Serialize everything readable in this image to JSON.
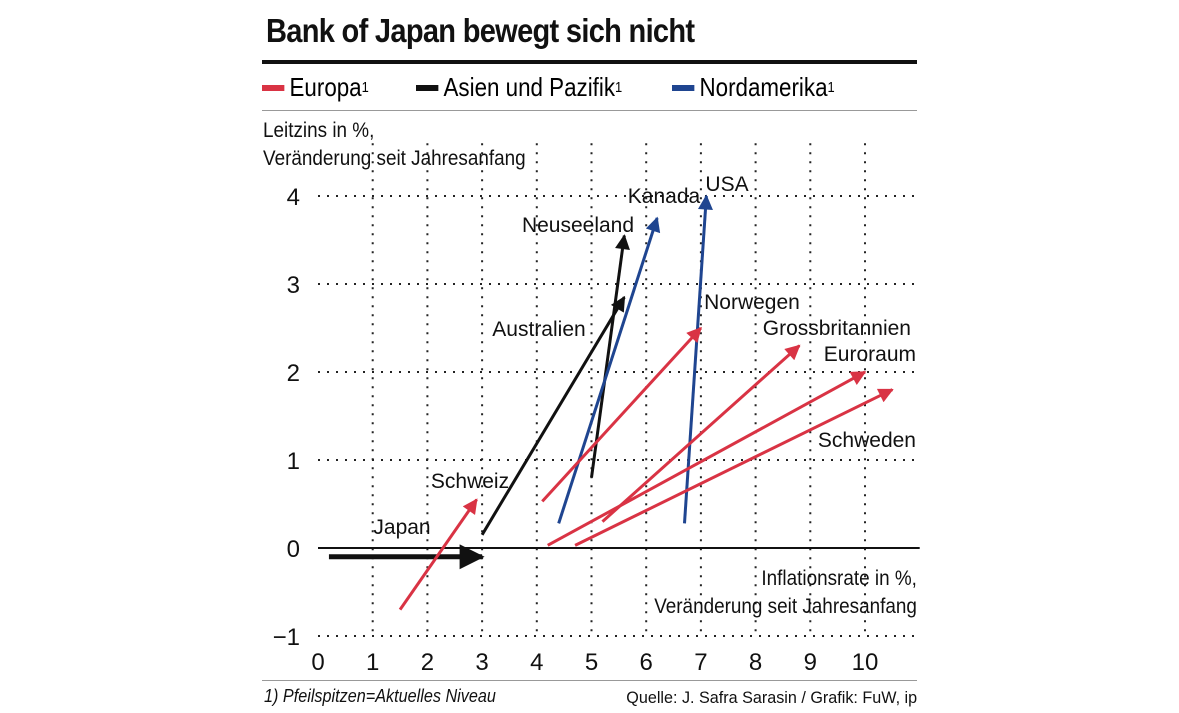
{
  "header": {
    "title": "Bank of Japan bewegt sich nicht"
  },
  "legend": [
    {
      "label": "Europa",
      "sup": "1",
      "color": "#d93344"
    },
    {
      "label": "Asien und Pazifik",
      "sup": "1",
      "color": "#111111"
    },
    {
      "label": "Nordamerika",
      "sup": "1",
      "color": "#1f4590"
    }
  ],
  "axes": {
    "ylabel_line1": "Leitzins in %,",
    "ylabel_line2": "Veränderung seit Jahresanfang",
    "xlabel_line1": "Inflationsrate in %,",
    "xlabel_line2": "Veränderung seit Jahresanfang"
  },
  "footer": {
    "footnote": "1) Pfeilspitzen=Aktuelles Niveau",
    "source": "Quelle: J. Safra Sarasin / Grafik: FuW, ip"
  },
  "chart_data": {
    "type": "arrow-scatter",
    "title": "Bank of Japan bewegt sich nicht",
    "xlabel": "Inflationsrate in %, Veränderung seit Jahresanfang",
    "ylabel": "Leitzins in %, Veränderung seit Jahresanfang",
    "xlim": [
      0,
      11
    ],
    "ylim": [
      -1,
      4.6
    ],
    "xticks": [
      0,
      1,
      2,
      3,
      4,
      5,
      6,
      7,
      8,
      9,
      10
    ],
    "yticks": [
      -1,
      0,
      1,
      2,
      3,
      4
    ],
    "ytick_labels": [
      "−1",
      "0",
      "1",
      "2",
      "3",
      "4"
    ],
    "grid": true,
    "note": "Pfeilspitzen = aktuelles Niveau",
    "series": [
      {
        "name": "Japan",
        "region": "Asien und Pazifik",
        "start": [
          0.2,
          -0.1
        ],
        "end": [
          3.0,
          -0.1
        ]
      },
      {
        "name": "Schweiz",
        "region": "Europa",
        "start": [
          1.5,
          -0.7
        ],
        "end": [
          2.9,
          0.55
        ]
      },
      {
        "name": "Australien",
        "region": "Asien und Pazifik",
        "start": [
          3.0,
          0.15
        ],
        "end": [
          5.6,
          2.85
        ]
      },
      {
        "name": "Neuseeland",
        "region": "Asien und Pazifik",
        "start": [
          5.0,
          0.8
        ],
        "end": [
          5.6,
          3.55
        ]
      },
      {
        "name": "Kanada",
        "region": "Nordamerika",
        "start": [
          4.4,
          0.28
        ],
        "end": [
          6.2,
          3.75
        ]
      },
      {
        "name": "USA",
        "region": "Nordamerika",
        "start": [
          6.7,
          0.28
        ],
        "end": [
          7.1,
          4.0
        ]
      },
      {
        "name": "Norwegen",
        "region": "Europa",
        "start": [
          4.1,
          0.53
        ],
        "end": [
          7.0,
          2.5
        ]
      },
      {
        "name": "Grossbritannien",
        "region": "Europa",
        "start": [
          5.2,
          0.3
        ],
        "end": [
          8.8,
          2.3
        ]
      },
      {
        "name": "Euroraum",
        "region": "Europa",
        "start": [
          4.2,
          0.03
        ],
        "end": [
          10.0,
          2.0
        ]
      },
      {
        "name": "Schweden",
        "region": "Europa",
        "start": [
          4.7,
          0.03
        ],
        "end": [
          10.5,
          1.8
        ]
      }
    ],
    "point_labels": [
      "Japan",
      "Schweiz",
      "Australien",
      "Neuseeland",
      "Kanada",
      "USA",
      "Norwegen",
      "Grossbritannien",
      "Euroraum",
      "Schweden"
    ]
  }
}
